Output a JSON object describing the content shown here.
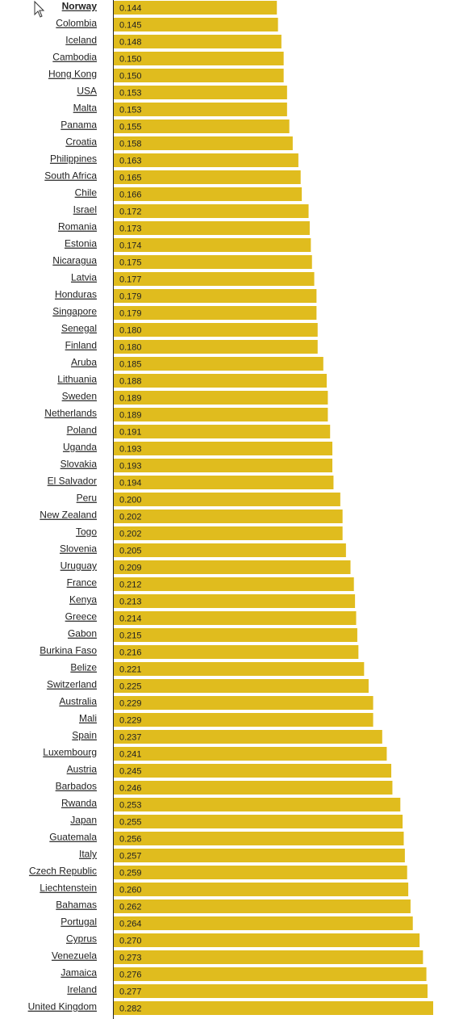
{
  "chart_data": {
    "type": "bar",
    "orientation": "horizontal",
    "color": "#e0bc1e",
    "categories": [
      "Norway",
      "Colombia",
      "Iceland",
      "Cambodia",
      "Hong Kong",
      "USA",
      "Malta",
      "Panama",
      "Croatia",
      "Philippines",
      "South Africa",
      "Chile",
      "Israel",
      "Romania",
      "Estonia",
      "Nicaragua",
      "Latvia",
      "Honduras",
      "Singapore",
      "Senegal",
      "Finland",
      "Aruba",
      "Lithuania",
      "Sweden",
      "Netherlands",
      "Poland",
      "Uganda",
      "Slovakia",
      "El Salvador",
      "Peru",
      "New Zealand",
      "Togo",
      "Slovenia",
      "Uruguay",
      "France",
      "Kenya",
      "Greece",
      "Gabon",
      "Burkina Faso",
      "Belize",
      "Switzerland",
      "Australia",
      "Mali",
      "Spain",
      "Luxembourg",
      "Austria",
      "Barbados",
      "Rwanda",
      "Japan",
      "Guatemala",
      "Italy",
      "Czech Republic",
      "Liechtenstein",
      "Bahamas",
      "Portugal",
      "Cyprus",
      "Venezuela",
      "Jamaica",
      "Ireland",
      "United Kingdom"
    ],
    "values": [
      0.144,
      0.145,
      0.148,
      0.15,
      0.15,
      0.153,
      0.153,
      0.155,
      0.158,
      0.163,
      0.165,
      0.166,
      0.172,
      0.173,
      0.174,
      0.175,
      0.177,
      0.179,
      0.179,
      0.18,
      0.18,
      0.185,
      0.188,
      0.189,
      0.189,
      0.191,
      0.193,
      0.193,
      0.194,
      0.2,
      0.202,
      0.202,
      0.205,
      0.209,
      0.212,
      0.213,
      0.214,
      0.215,
      0.216,
      0.221,
      0.225,
      0.229,
      0.229,
      0.237,
      0.241,
      0.245,
      0.246,
      0.253,
      0.255,
      0.256,
      0.257,
      0.259,
      0.26,
      0.262,
      0.264,
      0.27,
      0.273,
      0.276,
      0.277,
      0.282
    ],
    "value_labels": [
      "0.144",
      "0.145",
      "0.148",
      "0.150",
      "0.150",
      "0.153",
      "0.153",
      "0.155",
      "0.158",
      "0.163",
      "0.165",
      "0.166",
      "0.172",
      "0.173",
      "0.174",
      "0.175",
      "0.177",
      "0.179",
      "0.179",
      "0.180",
      "0.180",
      "0.185",
      "0.188",
      "0.189",
      "0.189",
      "0.191",
      "0.193",
      "0.193",
      "0.194",
      "0.200",
      "0.202",
      "0.202",
      "0.205",
      "0.209",
      "0.212",
      "0.213",
      "0.214",
      "0.215",
      "0.216",
      "0.221",
      "0.225",
      "0.229",
      "0.229",
      "0.237",
      "0.241",
      "0.245",
      "0.246",
      "0.253",
      "0.255",
      "0.256",
      "0.257",
      "0.259",
      "0.260",
      "0.262",
      "0.264",
      "0.270",
      "0.273",
      "0.276",
      "0.277",
      "0.282"
    ]
  }
}
